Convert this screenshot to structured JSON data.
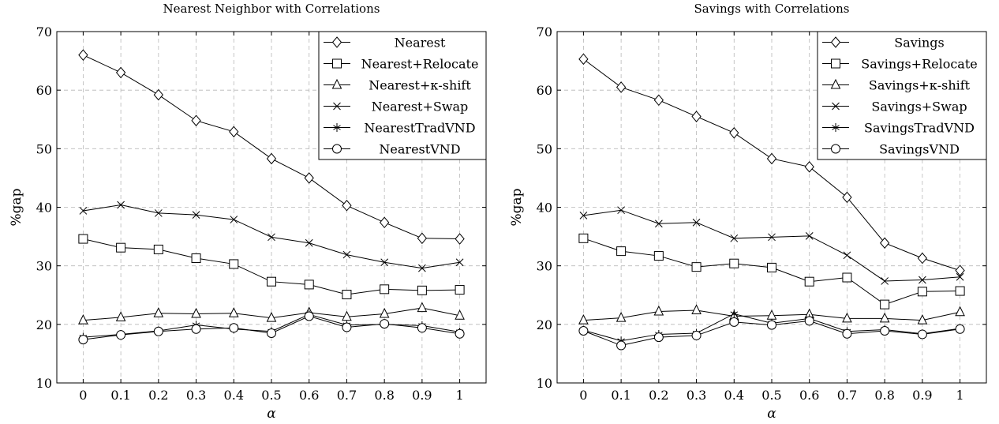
{
  "chart_data": [
    {
      "type": "line",
      "title": "Nearest Neighbor with Correlations",
      "xlabel": "α",
      "ylabel": "%gap",
      "x": [
        0,
        0.1,
        0.2,
        0.3,
        0.4,
        0.5,
        0.6,
        0.7,
        0.8,
        0.9,
        1
      ],
      "x_tick_labels": [
        "0",
        "0.1",
        "0.2",
        "0.3",
        "0.4",
        "0.5",
        "0.6",
        "0.7",
        "0.8",
        "0.9",
        "1"
      ],
      "y_ticks": [
        10,
        20,
        30,
        40,
        50,
        60,
        70
      ],
      "xlim": [
        -0.07,
        1.07
      ],
      "ylim": [
        10,
        70
      ],
      "grid": true,
      "legend_position": "top-right",
      "series": [
        {
          "name": "Nearest",
          "marker": "diamond",
          "values": [
            66.0,
            63.0,
            59.2,
            54.8,
            52.9,
            48.3,
            45.0,
            40.3,
            37.4,
            34.7,
            34.6
          ]
        },
        {
          "name": "Nearest+Relocate",
          "marker": "square",
          "values": [
            34.6,
            33.1,
            32.8,
            31.3,
            30.3,
            27.3,
            26.8,
            25.1,
            26.0,
            25.8,
            25.9
          ]
        },
        {
          "name": "Nearest+κ-shift",
          "marker": "triangle",
          "values": [
            20.7,
            21.2,
            21.9,
            21.8,
            21.9,
            21.1,
            22.0,
            21.3,
            21.8,
            22.8,
            21.5
          ]
        },
        {
          "name": "Nearest+Swap",
          "marker": "x",
          "values": [
            39.4,
            40.4,
            39.0,
            38.7,
            37.9,
            34.9,
            33.9,
            31.9,
            30.6,
            29.6,
            30.6
          ]
        },
        {
          "name": "NearestTradVND",
          "marker": "star",
          "values": [
            17.8,
            18.3,
            18.9,
            19.9,
            19.2,
            18.8,
            21.7,
            19.9,
            20.0,
            19.8,
            18.7
          ]
        },
        {
          "name": "NearestVND",
          "marker": "circle",
          "values": [
            17.4,
            18.2,
            18.8,
            19.2,
            19.4,
            18.5,
            21.4,
            19.5,
            20.1,
            19.4,
            18.4
          ]
        }
      ]
    },
    {
      "type": "line",
      "title": "Savings with Correlations",
      "xlabel": "α",
      "ylabel": "%gap",
      "x": [
        0,
        0.1,
        0.2,
        0.3,
        0.4,
        0.5,
        0.6,
        0.7,
        0.8,
        0.9,
        1
      ],
      "x_tick_labels": [
        "0",
        "0.1",
        "0.2",
        "0.3",
        "0.4",
        "0.5",
        "0.6",
        "0.7",
        "0.8",
        "0.9",
        "1"
      ],
      "y_ticks": [
        10,
        20,
        30,
        40,
        50,
        60,
        70
      ],
      "xlim": [
        -0.07,
        1.07
      ],
      "ylim": [
        10,
        70
      ],
      "grid": true,
      "legend_position": "top-right",
      "series": [
        {
          "name": "Savings",
          "marker": "diamond",
          "values": [
            65.3,
            60.5,
            58.3,
            55.5,
            52.7,
            48.3,
            46.9,
            41.7,
            33.9,
            31.3,
            29.2
          ]
        },
        {
          "name": "Savings+Relocate",
          "marker": "square",
          "values": [
            34.7,
            32.5,
            31.7,
            29.8,
            30.4,
            29.7,
            27.3,
            28.0,
            23.4,
            25.6,
            25.7
          ]
        },
        {
          "name": "Savings+κ-shift",
          "marker": "triangle",
          "values": [
            20.7,
            21.1,
            22.2,
            22.4,
            21.4,
            21.5,
            21.7,
            21.0,
            21.0,
            20.7,
            22.1
          ]
        },
        {
          "name": "Savings+Swap",
          "marker": "x",
          "values": [
            38.6,
            39.5,
            37.2,
            37.4,
            34.7,
            34.9,
            35.1,
            31.8,
            27.4,
            27.6,
            28.1
          ]
        },
        {
          "name": "SavingsTradVND",
          "marker": "star",
          "values": [
            19.0,
            17.2,
            18.3,
            18.5,
            21.8,
            20.2,
            21.0,
            18.8,
            19.1,
            18.4,
            19.3
          ]
        },
        {
          "name": "SavingsVND",
          "marker": "circle",
          "values": [
            18.9,
            16.4,
            17.8,
            18.1,
            20.4,
            19.9,
            20.6,
            18.4,
            18.9,
            18.3,
            19.2
          ]
        }
      ]
    }
  ]
}
